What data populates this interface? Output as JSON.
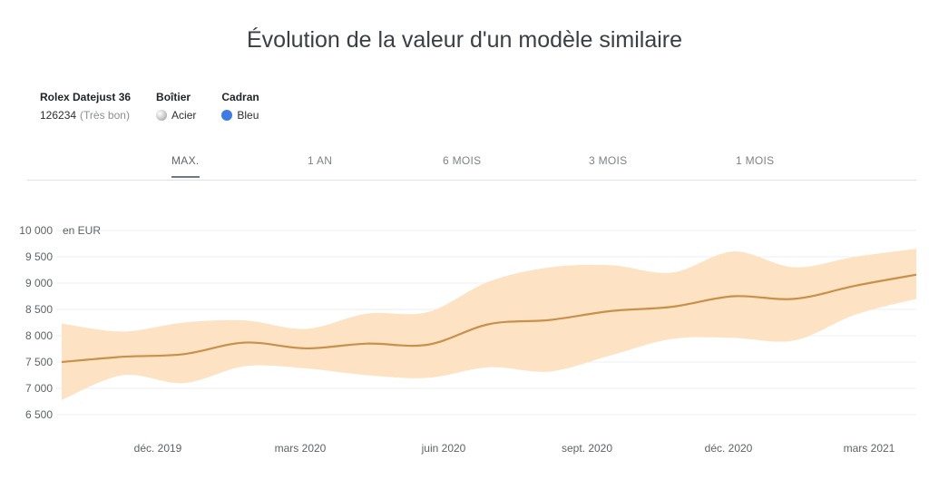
{
  "title": "Évolution de la valeur d'un modèle similaire",
  "specs": {
    "model_name": "Rolex Datejust 36",
    "reference": "126234",
    "condition": "(Très bon)",
    "case_label": "Boîtier",
    "case_value": "Acier",
    "case_icon": "steel-swatch-icon",
    "dial_label": "Cadran",
    "dial_value": "Bleu",
    "dial_icon": "blue-swatch-icon",
    "dial_color": "#3d7be6"
  },
  "tabs": [
    {
      "label": "MAX.",
      "active": true
    },
    {
      "label": "1 AN",
      "active": false
    },
    {
      "label": "6 MOIS",
      "active": false
    },
    {
      "label": "3 MOIS",
      "active": false
    },
    {
      "label": "1 MOIS",
      "active": false
    }
  ],
  "chart_data": {
    "type": "area",
    "unit_label": "en EUR",
    "ylim": [
      6500,
      10000
    ],
    "yticks": [
      6500,
      7000,
      7500,
      8000,
      8500,
      9000,
      9500,
      10000
    ],
    "ytick_labels": [
      "6 500",
      "7 000",
      "7 500",
      "8 000",
      "8 500",
      "9 000",
      "9 500",
      "10 000"
    ],
    "xtick_labels": [
      "déc. 2019",
      "mars 2020",
      "juin 2020",
      "sept. 2020",
      "déc. 2020",
      "mars 2021"
    ],
    "grid": true,
    "line_color": "#c8904a",
    "band_color": "#fde3c4",
    "series": [
      {
        "values": [
          7500,
          7600,
          7650,
          7870,
          7760,
          7850,
          7830,
          8220,
          8300,
          8470,
          8550,
          8750,
          8700,
          8950,
          9160
        ],
        "upper": [
          8230,
          8080,
          8250,
          8290,
          8130,
          8420,
          8450,
          9030,
          9300,
          9340,
          9200,
          9600,
          9300,
          9500,
          9650
        ],
        "lower": [
          6780,
          7250,
          7100,
          7420,
          7380,
          7250,
          7200,
          7400,
          7320,
          7630,
          7940,
          7960,
          7910,
          8400,
          8700
        ]
      }
    ]
  }
}
